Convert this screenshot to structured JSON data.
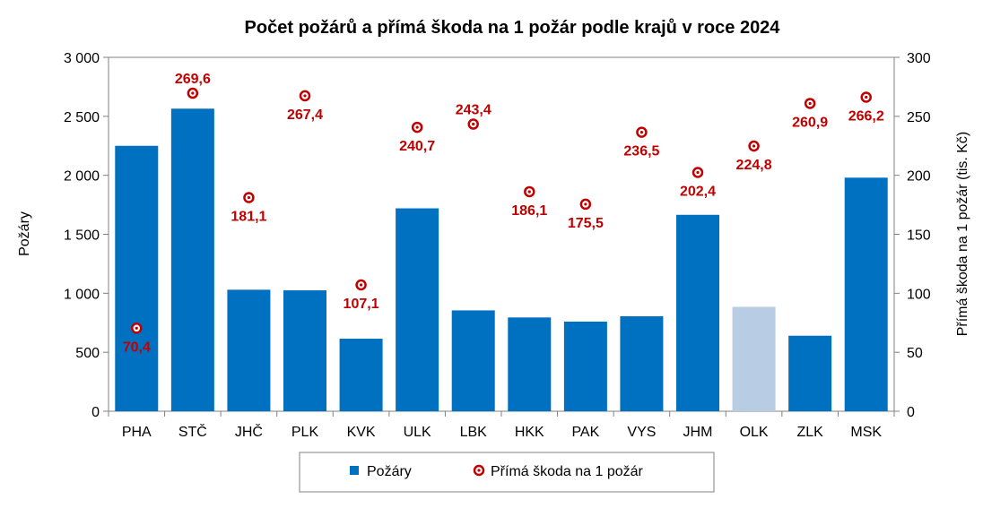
{
  "chart_data": {
    "type": "bar",
    "title": "Počet požárů a přímá škoda na 1 požár podle krajů v roce 2024",
    "categories": [
      "PHA",
      "STČ",
      "JHČ",
      "PLK",
      "KVK",
      "ULK",
      "LBK",
      "HKK",
      "PAK",
      "VYS",
      "JHM",
      "OLK",
      "ZLK",
      "MSK"
    ],
    "series": [
      {
        "name": "Požáry",
        "type": "bar",
        "axis": "left",
        "color": "#0070c0",
        "highlight_color": "#b8cce4",
        "highlight_index": 11,
        "values": [
          2250,
          2565,
          1030,
          1025,
          615,
          1720,
          855,
          795,
          760,
          805,
          1665,
          885,
          640,
          1980
        ]
      },
      {
        "name": "Přímá škoda na 1 požár",
        "type": "scatter",
        "axis": "right",
        "color": "#c00000",
        "values": [
          70.4,
          269.6,
          181.1,
          267.4,
          107.1,
          240.7,
          243.4,
          186.1,
          175.5,
          236.5,
          202.4,
          224.8,
          260.9,
          266.2
        ],
        "labels": [
          "70,4",
          "269,6",
          "181,1",
          "267,4",
          "107,1",
          "240,7",
          "243,4",
          "186,1",
          "175,5",
          "236,5",
          "202,4",
          "224,8",
          "260,9",
          "266,2"
        ],
        "label_position": [
          "below",
          "above",
          "below",
          "below",
          "below",
          "below",
          "above",
          "below",
          "below",
          "below",
          "below",
          "below",
          "below",
          "below"
        ]
      }
    ],
    "ylabel": "Požáry",
    "y2label": "Přímá škoda na 1 požár (tis. Kč)",
    "ylim": [
      0,
      3000
    ],
    "y2lim": [
      0,
      300
    ],
    "yticks": [
      0,
      500,
      1000,
      1500,
      2000,
      2500,
      3000
    ],
    "ytick_labels": [
      "0",
      "500",
      "1 000",
      "1 500",
      "2 000",
      "2 500",
      "3 000"
    ],
    "y2ticks": [
      0,
      50,
      100,
      150,
      200,
      250,
      300
    ],
    "y2tick_labels": [
      "0",
      "50",
      "100",
      "150",
      "200",
      "250",
      "300"
    ],
    "grid": false,
    "legend": {
      "position": "bottom",
      "items": [
        "Požáry",
        "Přímá škoda na 1 požár"
      ]
    }
  }
}
